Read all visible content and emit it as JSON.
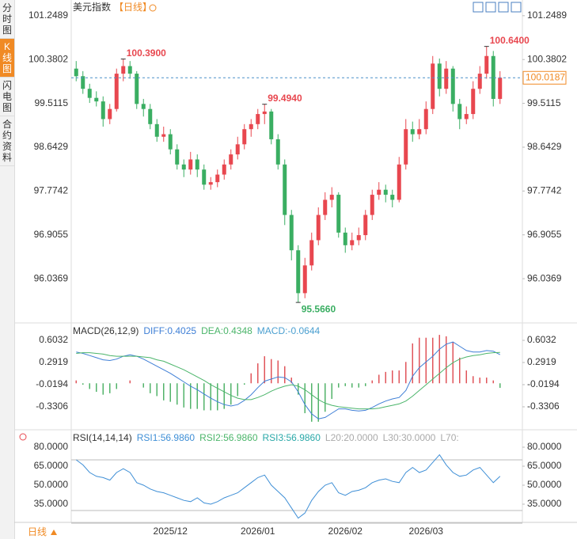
{
  "sidebar": {
    "tabs": [
      "分时图",
      "K线图",
      "闪电图",
      "合约资料"
    ],
    "active": 1
  },
  "footer": {
    "period": "日线"
  },
  "chart_data": [
    {
      "type": "candlestick",
      "title": "美元指数",
      "subtitle": "【日线】",
      "up_color": "#e8474f",
      "down_color": "#3aae62",
      "ylim": [
        95.16,
        101.56
      ],
      "yticks": [
        101.2489,
        100.3802,
        99.5115,
        98.6429,
        97.7742,
        96.9055,
        96.0369
      ],
      "categories": [
        null,
        null,
        null,
        null,
        null,
        null,
        null,
        null,
        null,
        null,
        null,
        null,
        null,
        null,
        "2025/12",
        null,
        null,
        null,
        null,
        null,
        null,
        null,
        null,
        null,
        null,
        null,
        null,
        "2026/01",
        null,
        null,
        null,
        null,
        null,
        null,
        null,
        null,
        null,
        null,
        null,
        null,
        "2026/02",
        null,
        null,
        null,
        null,
        null,
        null,
        null,
        null,
        null,
        null,
        null,
        "2026/03",
        null,
        null,
        null,
        null,
        null,
        null,
        null,
        null,
        null,
        null,
        null
      ],
      "candles": [
        [
          100.2,
          100.35,
          99.95,
          100.05
        ],
        [
          100.05,
          100.15,
          99.7,
          99.8
        ],
        [
          99.8,
          99.9,
          99.52,
          99.62
        ],
        [
          99.62,
          99.75,
          99.45,
          99.55
        ],
        [
          99.55,
          99.65,
          99.05,
          99.2
        ],
        [
          99.2,
          99.5,
          99.1,
          99.4
        ],
        [
          99.4,
          100.2,
          99.35,
          100.1
        ],
        [
          100.1,
          100.39,
          99.95,
          100.25
        ],
        [
          100.25,
          100.35,
          100.0,
          100.1
        ],
        [
          100.1,
          100.15,
          99.4,
          99.5
        ],
        [
          99.5,
          99.6,
          99.25,
          99.4
        ],
        [
          99.4,
          99.5,
          99.0,
          99.1
        ],
        [
          99.1,
          99.2,
          98.75,
          98.85
        ],
        [
          98.85,
          99.05,
          98.75,
          98.9
        ],
        [
          98.9,
          99.0,
          98.5,
          98.6
        ],
        [
          98.6,
          98.7,
          98.2,
          98.3
        ],
        [
          98.3,
          98.4,
          98.05,
          98.2
        ],
        [
          98.2,
          98.55,
          98.1,
          98.4
        ],
        [
          98.4,
          98.5,
          98.05,
          98.2
        ],
        [
          98.2,
          98.3,
          97.8,
          97.9
        ],
        [
          97.9,
          98.05,
          97.8,
          97.95
        ],
        [
          97.95,
          98.2,
          97.85,
          98.1
        ],
        [
          98.1,
          98.4,
          98.0,
          98.3
        ],
        [
          98.3,
          98.6,
          98.2,
          98.5
        ],
        [
          98.5,
          98.85,
          98.4,
          98.7
        ],
        [
          98.7,
          99.1,
          98.6,
          99.0
        ],
        [
          99.0,
          99.2,
          98.85,
          99.1
        ],
        [
          99.1,
          99.4,
          99.0,
          99.3
        ],
        [
          99.3,
          99.494,
          99.1,
          99.35
        ],
        [
          99.35,
          99.4,
          98.7,
          98.8
        ],
        [
          98.8,
          98.9,
          98.2,
          98.3
        ],
        [
          98.3,
          98.4,
          97.1,
          97.3
        ],
        [
          97.3,
          97.4,
          96.4,
          96.6
        ],
        [
          96.6,
          96.7,
          95.566,
          95.75
        ],
        [
          95.75,
          96.45,
          95.65,
          96.3
        ],
        [
          96.3,
          96.95,
          96.2,
          96.8
        ],
        [
          96.8,
          97.45,
          96.7,
          97.3
        ],
        [
          97.3,
          97.75,
          97.2,
          97.6
        ],
        [
          97.6,
          97.85,
          97.45,
          97.7
        ],
        [
          97.7,
          97.75,
          96.85,
          96.95
        ],
        [
          96.95,
          97.05,
          96.55,
          96.7
        ],
        [
          96.7,
          96.95,
          96.6,
          96.8
        ],
        [
          96.8,
          97.05,
          96.7,
          96.9
        ],
        [
          96.9,
          97.4,
          96.8,
          97.3
        ],
        [
          97.3,
          97.8,
          97.2,
          97.7
        ],
        [
          97.7,
          97.95,
          97.6,
          97.8
        ],
        [
          97.8,
          97.9,
          97.55,
          97.7
        ],
        [
          97.7,
          97.8,
          97.45,
          97.6
        ],
        [
          97.6,
          98.45,
          97.55,
          98.3
        ],
        [
          98.3,
          99.2,
          98.2,
          99.0
        ],
        [
          99.0,
          99.15,
          98.75,
          98.9
        ],
        [
          98.9,
          99.2,
          98.8,
          99.0
        ],
        [
          99.0,
          99.55,
          98.9,
          99.4
        ],
        [
          99.4,
          100.45,
          99.3,
          100.3
        ],
        [
          100.3,
          100.4,
          99.65,
          99.8
        ],
        [
          99.8,
          100.35,
          99.7,
          100.2
        ],
        [
          100.2,
          100.25,
          99.35,
          99.5
        ],
        [
          99.5,
          99.6,
          99.0,
          99.2
        ],
        [
          99.2,
          99.45,
          99.1,
          99.3
        ],
        [
          99.3,
          99.95,
          99.2,
          99.8
        ],
        [
          99.8,
          100.25,
          99.7,
          100.1
        ],
        [
          100.1,
          100.64,
          100.0,
          100.45
        ],
        [
          100.45,
          100.55,
          99.45,
          99.6
        ],
        [
          99.6,
          100.15,
          99.5,
          100.02
        ]
      ],
      "annotations": [
        {
          "value": 100.39,
          "label": "100.3900",
          "color": "#e8474f"
        },
        {
          "value": 99.494,
          "label": "99.4940",
          "color": "#e8474f"
        },
        {
          "value": 95.566,
          "label": "95.5660",
          "color": "#3aae62"
        },
        {
          "value": 100.64,
          "label": "100.6400",
          "color": "#e8474f"
        }
      ],
      "current_price": {
        "value": 100.0187,
        "label": "100.0187",
        "color": "#f08a24"
      }
    },
    {
      "type": "macd",
      "title": "MACD(26,12,9)",
      "ylim": [
        -0.6197,
        0.8256
      ],
      "yticks": [
        0.6032,
        0.2919,
        -0.0194,
        -0.3306
      ],
      "legend": [
        {
          "text": "DIFF:0.4025",
          "color": "#3f7fd6"
        },
        {
          "text": "DEA:0.4348",
          "color": "#4bb56a"
        },
        {
          "text": "MACD:-0.0644",
          "color": "#4a9fd0"
        }
      ],
      "series": [
        {
          "name": "DIFF",
          "color": "#3f7fd6",
          "values": [
            0.44,
            0.42,
            0.39,
            0.36,
            0.33,
            0.32,
            0.34,
            0.38,
            0.4,
            0.38,
            0.34,
            0.29,
            0.24,
            0.19,
            0.14,
            0.08,
            0.02,
            -0.04,
            -0.09,
            -0.15,
            -0.21,
            -0.26,
            -0.3,
            -0.32,
            -0.3,
            -0.24,
            -0.16,
            -0.06,
            0.03,
            0.06,
            0.09,
            0.08,
            0.02,
            -0.12,
            -0.3,
            -0.43,
            -0.5,
            -0.48,
            -0.42,
            -0.36,
            -0.36,
            -0.38,
            -0.39,
            -0.38,
            -0.34,
            -0.29,
            -0.25,
            -0.22,
            -0.2,
            -0.1,
            0.1,
            0.22,
            0.3,
            0.38,
            0.48,
            0.55,
            0.58,
            0.52,
            0.46,
            0.44,
            0.44,
            0.46,
            0.45,
            0.4025
          ]
        },
        {
          "name": "DEA",
          "color": "#4bb56a",
          "values": [
            0.42,
            0.43,
            0.43,
            0.42,
            0.41,
            0.39,
            0.38,
            0.38,
            0.38,
            0.38,
            0.37,
            0.36,
            0.33,
            0.31,
            0.27,
            0.23,
            0.19,
            0.14,
            0.09,
            0.04,
            -0.02,
            -0.07,
            -0.12,
            -0.17,
            -0.21,
            -0.23,
            -0.23,
            -0.2,
            -0.16,
            -0.11,
            -0.07,
            -0.04,
            -0.02,
            -0.04,
            -0.09,
            -0.16,
            -0.23,
            -0.28,
            -0.31,
            -0.33,
            -0.34,
            -0.35,
            -0.36,
            -0.36,
            -0.36,
            -0.35,
            -0.33,
            -0.31,
            -0.29,
            -0.25,
            -0.18,
            -0.1,
            -0.02,
            0.06,
            0.14,
            0.22,
            0.29,
            0.34,
            0.37,
            0.39,
            0.4,
            0.42,
            0.43,
            0.4348
          ]
        }
      ],
      "histogram": {
        "up_color": "#e0545a",
        "down_color": "#52b36a",
        "values": [
          0.04,
          -0.02,
          -0.08,
          -0.12,
          -0.16,
          -0.14,
          -0.08,
          0,
          0.04,
          0,
          -0.06,
          -0.14,
          -0.18,
          -0.24,
          -0.26,
          -0.3,
          -0.34,
          -0.36,
          -0.36,
          -0.38,
          -0.38,
          -0.38,
          -0.36,
          -0.3,
          -0.18,
          -0.02,
          0.14,
          0.28,
          0.38,
          0.34,
          0.32,
          0.24,
          0.08,
          -0.16,
          -0.42,
          -0.54,
          -0.54,
          -0.4,
          -0.22,
          -0.06,
          -0.04,
          -0.06,
          -0.06,
          -0.04,
          0.04,
          0.12,
          0.16,
          0.18,
          0.18,
          0.3,
          0.56,
          0.64,
          0.64,
          0.64,
          0.68,
          0.66,
          0.58,
          0.36,
          0.18,
          0.1,
          0.08,
          0.08,
          0.04,
          -0.0644
        ]
      }
    },
    {
      "type": "rsi",
      "title": "RSI(14,14,14)",
      "ylim": [
        20,
        92.5
      ],
      "yticks": [
        {
          "value": 80,
          "label": "80.0000"
        },
        {
          "value": 65,
          "label": "65.0000"
        },
        {
          "value": 50,
          "label": "50.0000"
        },
        {
          "value": 35,
          "label": "35.0000"
        }
      ],
      "legend": [
        {
          "text": "RSI1:56.9860",
          "color": "#3f8fd6"
        },
        {
          "text": "RSI2:56.9860",
          "color": "#4bb56a"
        },
        {
          "text": "RSI3:56.9860",
          "color": "#2aa8a8"
        },
        {
          "text": "L20:20.0000",
          "color": "#aaaaaa"
        },
        {
          "text": "L30:30.0000",
          "color": "#aaaaaa"
        },
        {
          "text": "L70:",
          "color": "#aaaaaa"
        }
      ],
      "levels": [
        20,
        30,
        70
      ],
      "series": [
        {
          "name": "RSI1",
          "color": "#3f8fd6",
          "values": [
            70,
            66,
            60,
            57,
            56,
            54,
            60,
            63,
            60,
            52,
            50,
            47,
            45,
            44,
            42,
            40,
            38,
            37,
            40,
            36,
            35,
            37,
            40,
            42,
            44,
            48,
            52,
            56,
            58,
            50,
            45,
            40,
            32,
            24,
            28,
            38,
            45,
            50,
            52,
            44,
            42,
            45,
            46,
            48,
            52,
            54,
            55,
            53,
            52,
            60,
            64,
            60,
            62,
            68,
            74,
            66,
            60,
            57,
            58,
            62,
            64,
            58,
            52,
            56.986
          ]
        }
      ]
    }
  ]
}
